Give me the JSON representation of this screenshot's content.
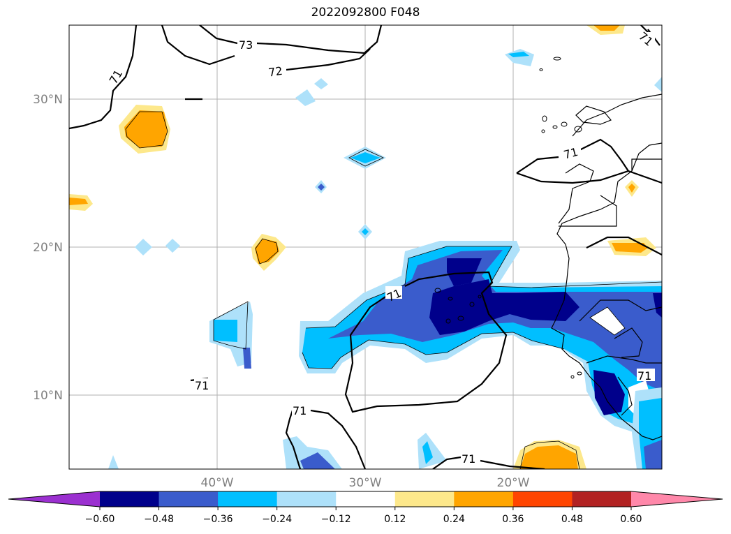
{
  "title": "2022092800 F048",
  "map": {
    "lat_labels": [
      "30°N",
      "20°N",
      "10°N"
    ],
    "lon_labels": [
      "40°W",
      "30°W",
      "20°W"
    ],
    "contour_labels": [
      "73",
      "72",
      "71",
      "71",
      "71",
      "71",
      "71",
      "71",
      "71",
      "71"
    ]
  },
  "colorbar": {
    "ticks": [
      "−0.60",
      "−0.48",
      "−0.36",
      "−0.24",
      "−0.12",
      "0.12",
      "0.24",
      "0.36",
      "0.48",
      "0.60"
    ],
    "colors": [
      "#9b30d0",
      "#00008b",
      "#3a5ccc",
      "#00bfff",
      "#aee1fa",
      "#ffffff",
      "#fde88b",
      "#ffa500",
      "#ff4500",
      "#b22222",
      "#ff88aa"
    ]
  }
}
